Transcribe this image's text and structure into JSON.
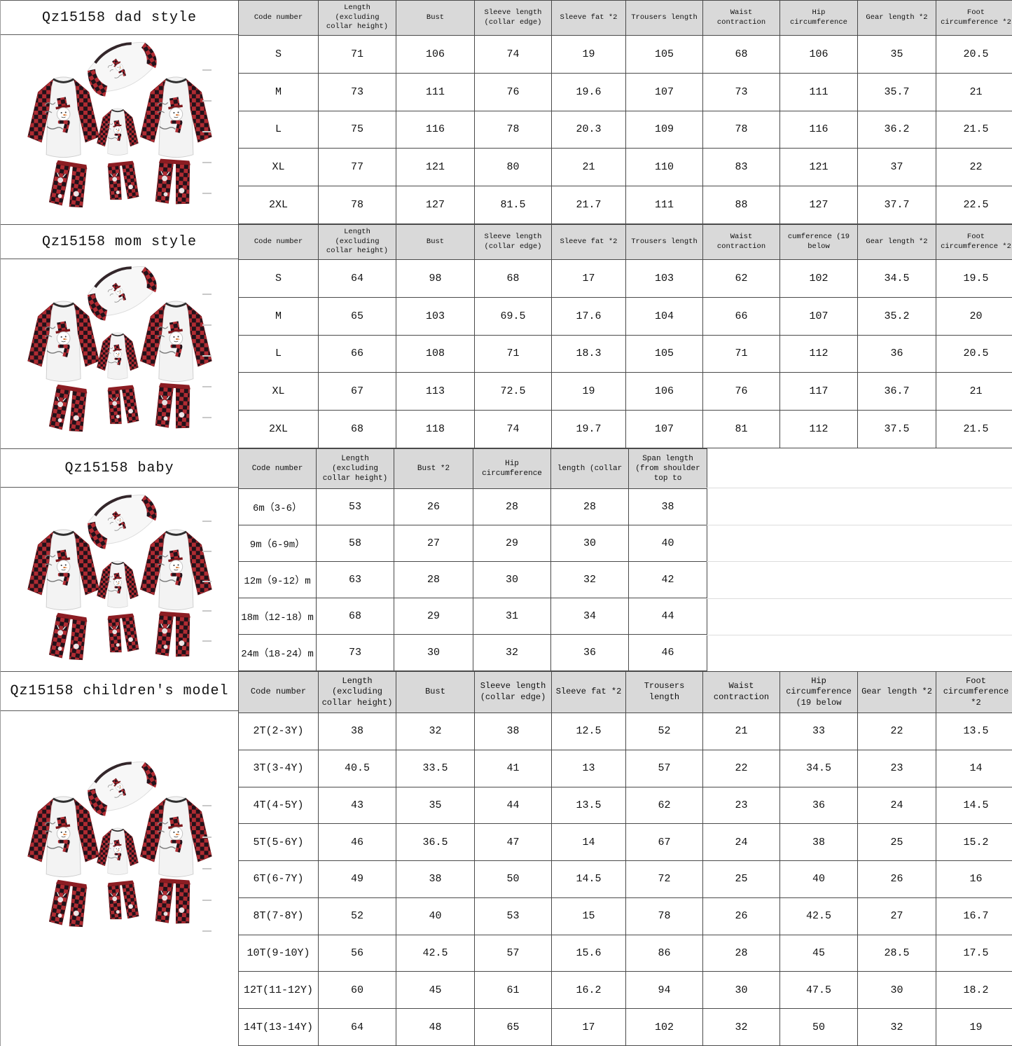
{
  "sections": [
    {
      "title": "Qz15158 dad style",
      "image": "family matching red buffalo-plaid snowman pajama set flat lay",
      "table": {
        "headers": [
          "Code number",
          "Length (excluding collar height)",
          "Bust",
          "Sleeve length (collar edge)",
          "Sleeve fat *2",
          "Trousers length",
          "Waist contraction",
          "Hip circumference",
          "Gear length *2",
          "Foot circumference *2"
        ],
        "rows": [
          [
            "S",
            "71",
            "106",
            "74",
            "19",
            "105",
            "68",
            "106",
            "35",
            "20.5"
          ],
          [
            "M",
            "73",
            "111",
            "76",
            "19.6",
            "107",
            "73",
            "111",
            "35.7",
            "21"
          ],
          [
            "L",
            "75",
            "116",
            "78",
            "20.3",
            "109",
            "78",
            "116",
            "36.2",
            "21.5"
          ],
          [
            "XL",
            "77",
            "121",
            "80",
            "21",
            "110",
            "83",
            "121",
            "37",
            "22"
          ],
          [
            "2XL",
            "78",
            "127",
            "81.5",
            "21.7",
            "111",
            "88",
            "127",
            "37.7",
            "22.5"
          ]
        ]
      }
    },
    {
      "title": "Qz15158 mom style",
      "image": "family matching red buffalo-plaid snowman pajama set flat lay",
      "table": {
        "headers": [
          "Code number",
          "Length (excluding collar height)",
          "Bust",
          "Sleeve length (collar edge)",
          "Sleeve fat *2",
          "Trousers length",
          "Waist contraction",
          "cumference (19 below",
          "Gear length *2",
          "Foot circumference *2"
        ],
        "rows": [
          [
            "S",
            "64",
            "98",
            "68",
            "17",
            "103",
            "62",
            "102",
            "34.5",
            "19.5"
          ],
          [
            "M",
            "65",
            "103",
            "69.5",
            "17.6",
            "104",
            "66",
            "107",
            "35.2",
            "20"
          ],
          [
            "L",
            "66",
            "108",
            "71",
            "18.3",
            "105",
            "71",
            "112",
            "36",
            "20.5"
          ],
          [
            "XL",
            "67",
            "113",
            "72.5",
            "19",
            "106",
            "76",
            "117",
            "36.7",
            "21"
          ],
          [
            "2XL",
            "68",
            "118",
            "74",
            "19.7",
            "107",
            "81",
            "112",
            "37.5",
            "21.5"
          ]
        ]
      }
    },
    {
      "title": "Qz15158 baby",
      "image": "family matching red buffalo-plaid snowman pajama set flat lay",
      "table": {
        "headers": [
          "Code number",
          "Length (excluding collar height)",
          "Bust *2",
          "Hip circumference",
          "length (collar",
          "Span length (from shoulder top to"
        ],
        "rows": [
          [
            "6m（3-6）",
            "53",
            "26",
            "28",
            "28",
            "38"
          ],
          [
            "9m（6-9m）",
            "58",
            "27",
            "29",
            "30",
            "40"
          ],
          [
            "12m（9-12）m",
            "63",
            "28",
            "30",
            "32",
            "42"
          ],
          [
            "18m（12-18）m",
            "68",
            "29",
            "31",
            "34",
            "44"
          ],
          [
            "24m（18-24）m",
            "73",
            "30",
            "32",
            "36",
            "46"
          ]
        ]
      }
    },
    {
      "title": "Qz15158 children's model",
      "image": "family matching red buffalo-plaid snowman pajama set flat lay",
      "table": {
        "headers": [
          "Code number",
          "Length (excluding collar height)",
          "Bust",
          "Sleeve length (collar edge)",
          "Sleeve fat *2",
          "Trousers length",
          "Waist contraction",
          "Hip circumference (19 below",
          "Gear length *2",
          "Foot circumference *2"
        ],
        "rows": [
          [
            "2T(2-3Y)",
            "38",
            "32",
            "38",
            "12.5",
            "52",
            "21",
            "33",
            "22",
            "13.5"
          ],
          [
            "3T(3-4Y)",
            "40.5",
            "33.5",
            "41",
            "13",
            "57",
            "22",
            "34.5",
            "23",
            "14"
          ],
          [
            "4T(4-5Y)",
            "43",
            "35",
            "44",
            "13.5",
            "62",
            "23",
            "36",
            "24",
            "14.5"
          ],
          [
            "5T(5-6Y)",
            "46",
            "36.5",
            "47",
            "14",
            "67",
            "24",
            "38",
            "25",
            "15.2"
          ],
          [
            "6T(6-7Y)",
            "49",
            "38",
            "50",
            "14.5",
            "72",
            "25",
            "40",
            "26",
            "16"
          ],
          [
            "8T(7-8Y)",
            "52",
            "40",
            "53",
            "15",
            "78",
            "26",
            "42.5",
            "27",
            "16.7"
          ],
          [
            "10T(9-10Y)",
            "56",
            "42.5",
            "57",
            "15.6",
            "86",
            "28",
            "45",
            "28.5",
            "17.5"
          ],
          [
            "12T(11-12Y)",
            "60",
            "45",
            "61",
            "16.2",
            "94",
            "30",
            "47.5",
            "30",
            "18.2"
          ],
          [
            "14T(13-14Y)",
            "64",
            "48",
            "65",
            "17",
            "102",
            "32",
            "50",
            "32",
            "19"
          ]
        ]
      }
    }
  ],
  "colors": {
    "header_bg": "#d9d9d9",
    "grid_border": "#4a4a4a",
    "plaid_red": "#a6242b",
    "plaid_dark": "#22121a",
    "shirt_white": "#f3f3f3"
  }
}
